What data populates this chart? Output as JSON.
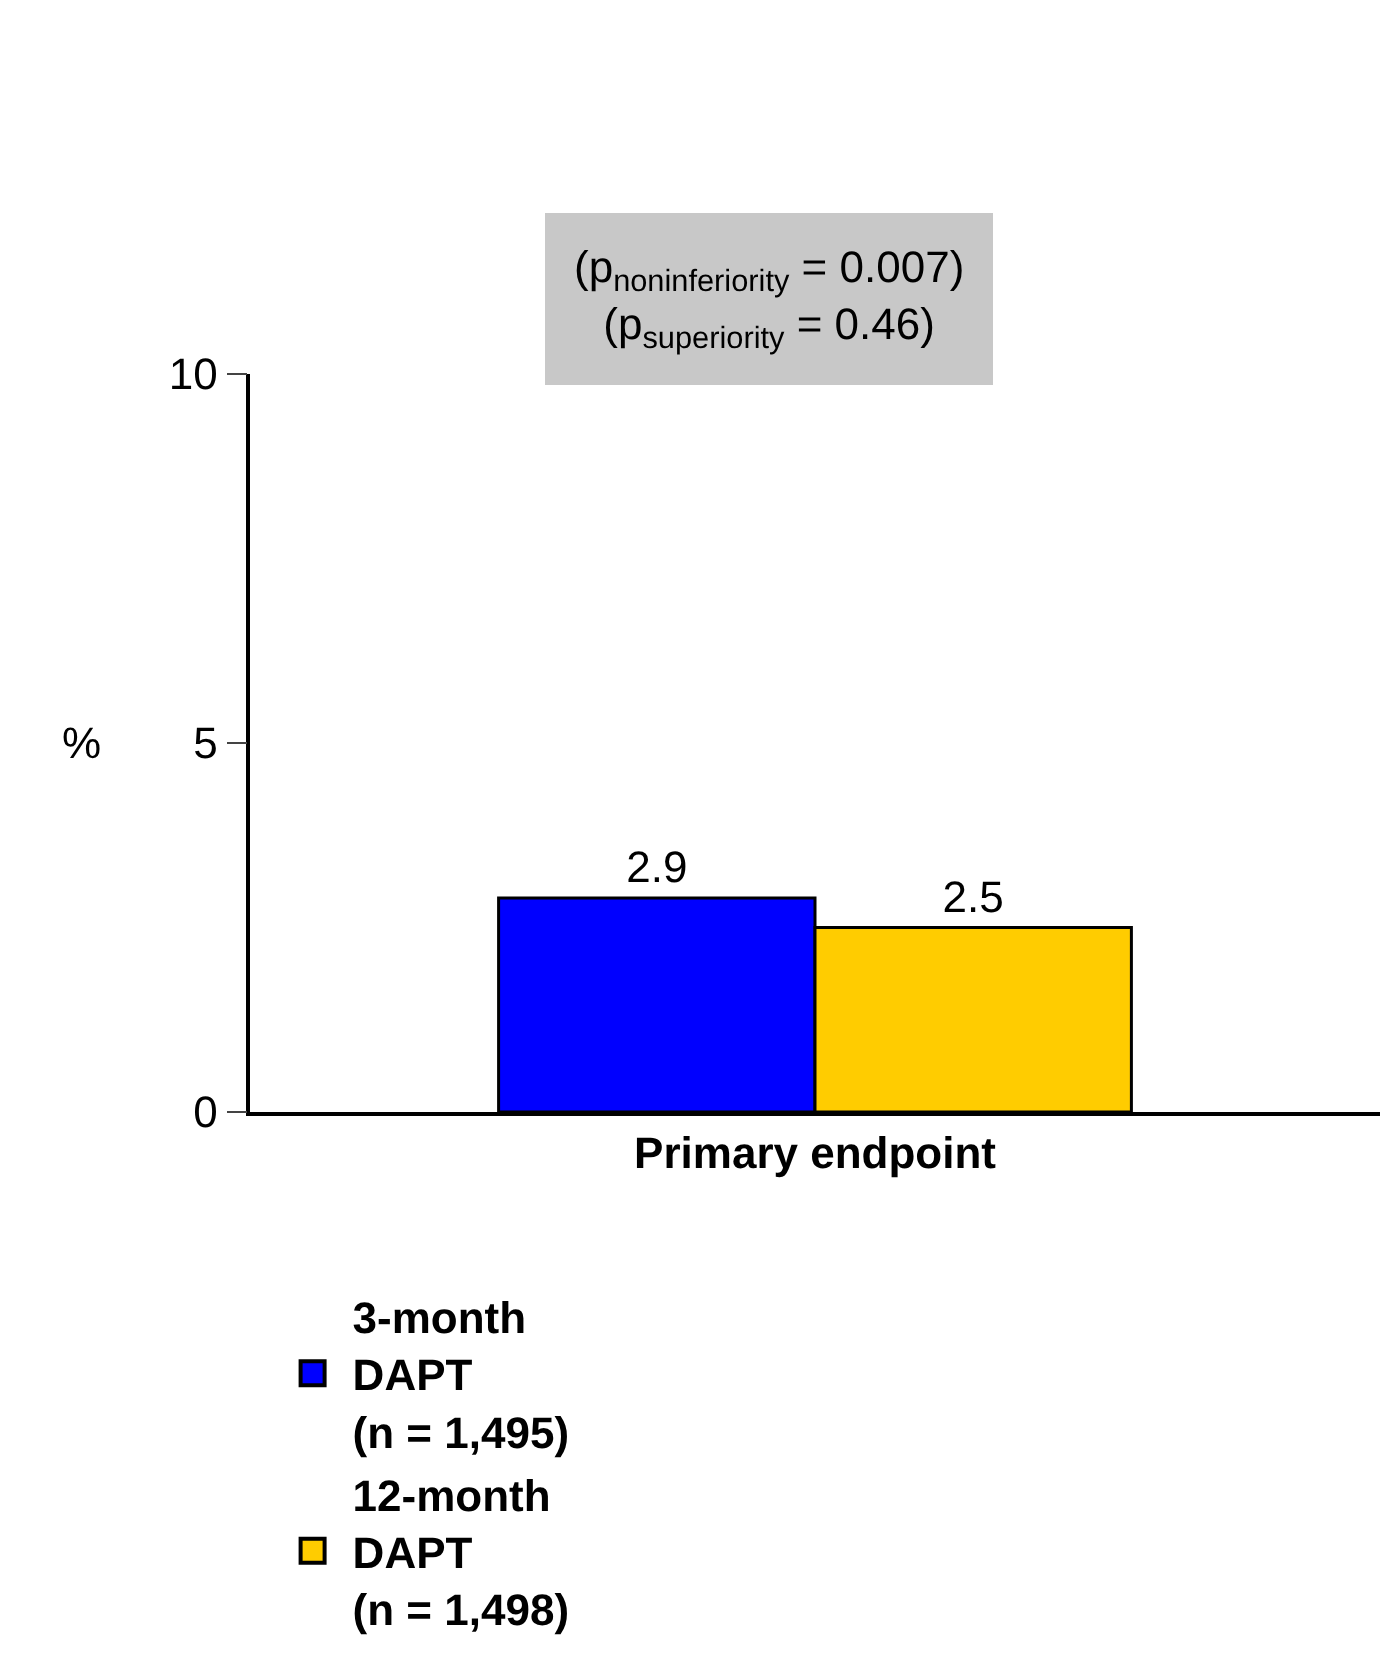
{
  "chart_data": {
    "type": "bar",
    "categories": [
      "Primary endpoint"
    ],
    "series": [
      {
        "name": "3-month\nDAPT\n(n = 1,495)",
        "color": "#0000ff",
        "values": [
          2.9
        ]
      },
      {
        "name": "12-month\nDAPT\n(n = 1,498)",
        "color": "#ffcc00",
        "values": [
          2.5
        ]
      }
    ],
    "ylabel": "%",
    "ylim": [
      0,
      10
    ],
    "yticks": [
      0,
      5,
      10
    ],
    "data_labels": true,
    "legend": "bottom",
    "annotations": [
      "(p$_{noninferiority}$ = 0.007)",
      "(p$_{superiority}$ = 0.46)"
    ]
  }
}
